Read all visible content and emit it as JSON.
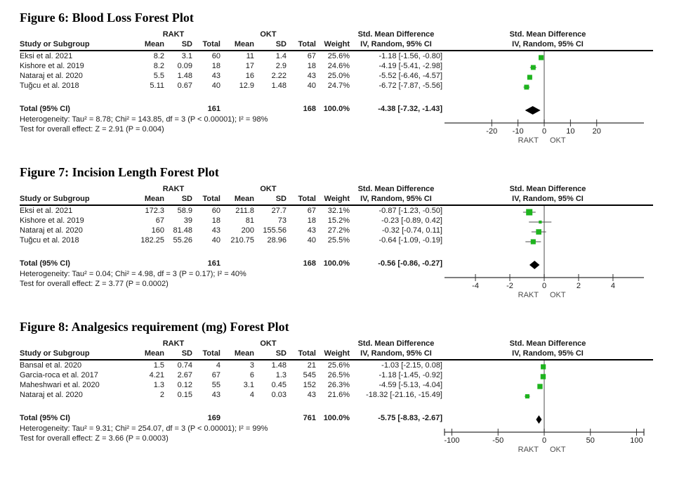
{
  "page": {
    "background": "#ffffff"
  },
  "colors": {
    "marker_green": "#1eb41e",
    "diamond": "#000000",
    "zero_line": "#808080",
    "axis": "#333333",
    "header_line": "#000000"
  },
  "headers": {
    "group": {
      "rakt": "RAKT",
      "okt": "OKT",
      "smd": "Std. Mean Difference"
    },
    "cols": {
      "study": "Study or Subgroup",
      "mean": "Mean",
      "sd": "SD",
      "total": "Total",
      "weight": "Weight",
      "ci": "IV, Random, 95% CI"
    },
    "plot": {
      "smd": "Std. Mean Difference",
      "method": "IV, Random, 95% CI"
    }
  },
  "figures": [
    {
      "title": "Figure 6: Blood Loss Forest Plot",
      "table": {
        "rows": [
          {
            "study": "Eksi et al. 2021",
            "mean1": "8.2",
            "sd1": "3.1",
            "total1": "60",
            "mean2": "11",
            "sd2": "1.4",
            "total2": "67",
            "weight": "25.6%",
            "ci": "-1.18 [-1.56, -0.80]"
          },
          {
            "study": "Kishore et al. 2019",
            "mean1": "8.2",
            "sd1": "0.09",
            "total1": "18",
            "mean2": "17",
            "sd2": "2.9",
            "total2": "18",
            "weight": "24.6%",
            "ci": "-4.19 [-5.41, -2.98]"
          },
          {
            "study": "Nataraj et al. 2020",
            "mean1": "5.5",
            "sd1": "1.48",
            "total1": "43",
            "mean2": "16",
            "sd2": "2.22",
            "total2": "43",
            "weight": "25.0%",
            "ci": "-5.52 [-6.46, -4.57]"
          },
          {
            "study": "Tuğcu et al. 2018",
            "mean1": "5.11",
            "sd1": "0.67",
            "total1": "40",
            "mean2": "12.9",
            "sd2": "1.48",
            "total2": "40",
            "weight": "24.7%",
            "ci": "-6.72 [-7.87, -5.56]"
          }
        ],
        "total": {
          "label": "Total (95% CI)",
          "total1": "161",
          "total2": "168",
          "weight": "100.0%",
          "ci": "-4.38 [-7.32, -1.43]"
        },
        "heterogeneity": "Heterogeneity: Tau² = 8.78; Chi² = 143.85, df = 3 (P < 0.00001); I² = 98%",
        "overall_effect": "Test for overall effect: Z = 2.91 (P = 0.004)"
      }
    },
    {
      "title": "Figure 7: Incision Length Forest Plot",
      "table": {
        "rows": [
          {
            "study": "Eksi et al. 2021",
            "mean1": "172.3",
            "sd1": "58.9",
            "total1": "60",
            "mean2": "211.8",
            "sd2": "27.7",
            "total2": "67",
            "weight": "32.1%",
            "ci": "-0.87 [-1.23, -0.50]"
          },
          {
            "study": "Kishore et al. 2019",
            "mean1": "67",
            "sd1": "39",
            "total1": "18",
            "mean2": "81",
            "sd2": "73",
            "total2": "18",
            "weight": "15.2%",
            "ci": "-0.23 [-0.89, 0.42]"
          },
          {
            "study": "Nataraj et al. 2020",
            "mean1": "160",
            "sd1": "81.48",
            "total1": "43",
            "mean2": "200",
            "sd2": "155.56",
            "total2": "43",
            "weight": "27.2%",
            "ci": "-0.32 [-0.74, 0.11]"
          },
          {
            "study": "Tuğcu et al. 2018",
            "mean1": "182.25",
            "sd1": "55.26",
            "total1": "40",
            "mean2": "210.75",
            "sd2": "28.96",
            "total2": "40",
            "weight": "25.5%",
            "ci": "-0.64 [-1.09, -0.19]"
          }
        ],
        "total": {
          "label": "Total (95% CI)",
          "total1": "161",
          "total2": "168",
          "weight": "100.0%",
          "ci": "-0.56 [-0.86, -0.27]"
        },
        "heterogeneity": "Heterogeneity: Tau² = 0.04; Chi² = 4.98, df = 3 (P = 0.17); I² = 40%",
        "overall_effect": "Test for overall effect: Z = 3.77 (P = 0.0002)"
      }
    },
    {
      "title": "Figure 8: Analgesics requirement (mg) Forest Plot",
      "table": {
        "rows": [
          {
            "study": "Bansal et al. 2020",
            "mean1": "1.5",
            "sd1": "0.74",
            "total1": "4",
            "mean2": "3",
            "sd2": "1.48",
            "total2": "21",
            "weight": "25.6%",
            "ci": "-1.03 [-2.15, 0.08]"
          },
          {
            "study": "Garcia-roca et al. 2017",
            "mean1": "4.21",
            "sd1": "2.67",
            "total1": "67",
            "mean2": "6",
            "sd2": "1.3",
            "total2": "545",
            "weight": "26.5%",
            "ci": "-1.18 [-1.45, -0.92]"
          },
          {
            "study": "Maheshwari et al. 2020",
            "mean1": "1.3",
            "sd1": "0.12",
            "total1": "55",
            "mean2": "3.1",
            "sd2": "0.45",
            "total2": "152",
            "weight": "26.3%",
            "ci": "-4.59 [-5.13, -4.04]"
          },
          {
            "study": "Nataraj et al. 2020",
            "mean1": "2",
            "sd1": "0.15",
            "total1": "43",
            "mean2": "4",
            "sd2": "0.03",
            "total2": "43",
            "weight": "21.6%",
            "ci": "-18.32 [-21.16, -15.49]"
          }
        ],
        "total": {
          "label": "Total (95% CI)",
          "total1": "169",
          "total2": "761",
          "weight": "100.0%",
          "ci": "-5.75 [-8.83, -2.67]"
        },
        "heterogeneity": "Heterogeneity: Tau² = 9.31; Chi² = 254.07, df = 3 (P < 0.00001); I² = 99%",
        "overall_effect": "Test for overall effect: Z = 3.66 (P = 0.0003)"
      }
    }
  ],
  "chart_data": [
    {
      "type": "forest",
      "title": "Figure 6: Blood Loss Forest Plot",
      "effect": "Std. Mean Difference",
      "model": "IV, Random, 95% CI",
      "favors_left": "RAKT",
      "favors_right": "OKT",
      "axis": {
        "ticks": [
          -20,
          -10,
          0,
          10,
          20
        ],
        "max_abs": 38,
        "end_caps": false
      },
      "studies": [
        {
          "name": "Eksi et al. 2021",
          "smd": -1.18,
          "ci_low": -1.56,
          "ci_high": -0.8,
          "weight_pct": 25.6
        },
        {
          "name": "Kishore et al. 2019",
          "smd": -4.19,
          "ci_low": -5.41,
          "ci_high": -2.98,
          "weight_pct": 24.6
        },
        {
          "name": "Nataraj et al. 2020",
          "smd": -5.52,
          "ci_low": -6.46,
          "ci_high": -4.57,
          "weight_pct": 25.0
        },
        {
          "name": "Tuğcu et al. 2018",
          "smd": -6.72,
          "ci_low": -7.87,
          "ci_high": -5.56,
          "weight_pct": 24.7
        }
      ],
      "total": {
        "smd": -4.38,
        "ci_low": -7.32,
        "ci_high": -1.43
      }
    },
    {
      "type": "forest",
      "title": "Figure 7: Incision Length Forest Plot",
      "effect": "Std. Mean Difference",
      "model": "IV, Random, 95% CI",
      "favors_left": "RAKT",
      "favors_right": "OKT",
      "axis": {
        "ticks": [
          -4,
          -2,
          0,
          2,
          4
        ],
        "max_abs": 5.8,
        "end_caps": false
      },
      "studies": [
        {
          "name": "Eksi et al. 2021",
          "smd": -0.87,
          "ci_low": -1.23,
          "ci_high": -0.5,
          "weight_pct": 32.1
        },
        {
          "name": "Kishore et al. 2019",
          "smd": -0.23,
          "ci_low": -0.89,
          "ci_high": 0.42,
          "weight_pct": 15.2
        },
        {
          "name": "Nataraj et al. 2020",
          "smd": -0.32,
          "ci_low": -0.74,
          "ci_high": 0.11,
          "weight_pct": 27.2
        },
        {
          "name": "Tuğcu et al. 2018",
          "smd": -0.64,
          "ci_low": -1.09,
          "ci_high": -0.19,
          "weight_pct": 25.5
        }
      ],
      "total": {
        "smd": -0.56,
        "ci_low": -0.86,
        "ci_high": -0.27
      }
    },
    {
      "type": "forest",
      "title": "Figure 8: Analgesics requirement (mg) Forest Plot",
      "effect": "Std. Mean Difference",
      "model": "IV, Random, 95% CI",
      "favors_left": "RAKT",
      "favors_right": "OKT",
      "axis": {
        "ticks": [
          -100,
          -50,
          0,
          50,
          100
        ],
        "max_abs": 108,
        "end_caps": true
      },
      "studies": [
        {
          "name": "Bansal et al. 2020",
          "smd": -1.03,
          "ci_low": -2.15,
          "ci_high": 0.08,
          "weight_pct": 25.6
        },
        {
          "name": "Garcia-roca et al. 2017",
          "smd": -1.18,
          "ci_low": -1.45,
          "ci_high": -0.92,
          "weight_pct": 26.5
        },
        {
          "name": "Maheshwari et al. 2020",
          "smd": -4.59,
          "ci_low": -5.13,
          "ci_high": -4.04,
          "weight_pct": 26.3
        },
        {
          "name": "Nataraj et al. 2020",
          "smd": -18.32,
          "ci_low": -21.16,
          "ci_high": -15.49,
          "weight_pct": 21.6
        }
      ],
      "total": {
        "smd": -5.75,
        "ci_low": -8.83,
        "ci_high": -2.67
      }
    }
  ]
}
